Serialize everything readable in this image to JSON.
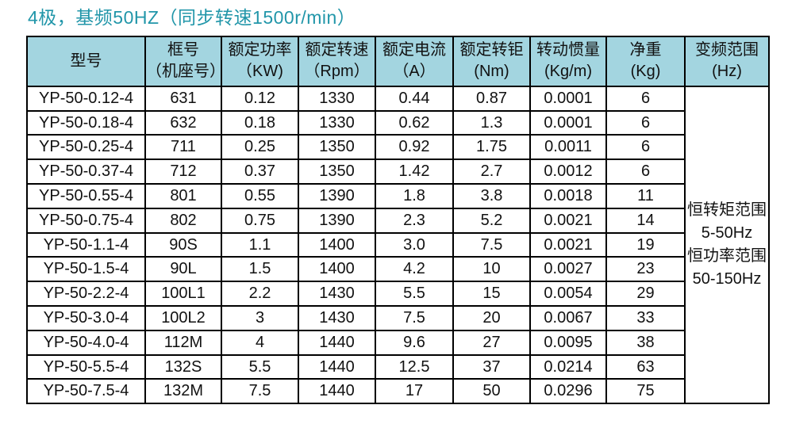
{
  "page": {
    "title": "4极，基频50HZ（同步转速1500r/min）"
  },
  "colors": {
    "title": "#2196a9",
    "header_bg": "#a3d5e0",
    "border": "#000000",
    "text": "#111111"
  },
  "table": {
    "columns": [
      {
        "key": "model",
        "title": "型号",
        "unit": ""
      },
      {
        "key": "frame",
        "title": "框号",
        "unit": "（机座号）"
      },
      {
        "key": "power",
        "title": "额定功率",
        "unit": "（KW)"
      },
      {
        "key": "speed",
        "title": "额定转速",
        "unit": "（Rpm）"
      },
      {
        "key": "current",
        "title": "额定电流",
        "unit": "（A）"
      },
      {
        "key": "torque",
        "title": "额定转钜",
        "unit": "(Nm)"
      },
      {
        "key": "inertia",
        "title": "转动惯量",
        "unit": "(Kg/m)"
      },
      {
        "key": "weight",
        "title": "净重",
        "unit": "(Kg)"
      },
      {
        "key": "freq",
        "title": "变频范围",
        "unit": "(Hz)"
      }
    ],
    "rows": [
      [
        "YP-50-0.12-4",
        "631",
        "0.12",
        "1330",
        "0.44",
        "0.87",
        "0.0001",
        "6"
      ],
      [
        "YP-50-0.18-4",
        "632",
        "0.18",
        "1330",
        "0.62",
        "1.3",
        "0.0001",
        "6"
      ],
      [
        "YP-50-0.25-4",
        "711",
        "0.25",
        "1350",
        "0.92",
        "1.75",
        "0.0011",
        "6"
      ],
      [
        "YP-50-0.37-4",
        "712",
        "0.37",
        "1350",
        "1.42",
        "2.7",
        "0.0012",
        "6"
      ],
      [
        "YP-50-0.55-4",
        "801",
        "0.55",
        "1390",
        "1.8",
        "3.8",
        "0.0018",
        "11"
      ],
      [
        "YP-50-0.75-4",
        "802",
        "0.75",
        "1390",
        "2.3",
        "5.2",
        "0.0021",
        "14"
      ],
      [
        "YP-50-1.1-4",
        "90S",
        "1.1",
        "1400",
        "3.0",
        "7.5",
        "0.0021",
        "19"
      ],
      [
        "YP-50-1.5-4",
        "90L",
        "1.5",
        "1400",
        "4.2",
        "10",
        "0.0027",
        "23"
      ],
      [
        "YP-50-2.2-4",
        "100L1",
        "2.2",
        "1430",
        "5.5",
        "15",
        "0.0054",
        "29"
      ],
      [
        "YP-50-3.0-4",
        "100L2",
        "3",
        "1430",
        "7.5",
        "20",
        "0.0067",
        "33"
      ],
      [
        "YP-50-4.0-4",
        "112M",
        "4",
        "1440",
        "9.6",
        "27",
        "0.0095",
        "38"
      ],
      [
        "YP-50-5.5-4",
        "132S",
        "5.5",
        "1440",
        "12.5",
        "37",
        "0.0214",
        "63"
      ],
      [
        "YP-50-7.5-4",
        "132M",
        "7.5",
        "1440",
        "17",
        "50",
        "0.0296",
        "75"
      ]
    ],
    "frequency_range_lines": [
      "恒转矩范围",
      "5-50Hz",
      "恒功率范围",
      "50-150Hz"
    ]
  }
}
